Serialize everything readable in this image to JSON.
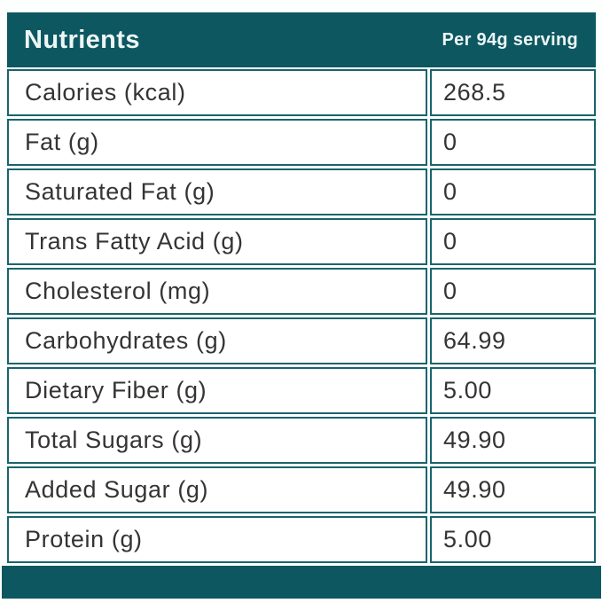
{
  "header": {
    "title": "Nutrients",
    "serving": "Per 94g serving"
  },
  "rows": [
    {
      "label": "Calories (kcal)",
      "value": "268.5"
    },
    {
      "label": "Fat (g)",
      "value": "0"
    },
    {
      "label": "Saturated Fat (g)",
      "value": "0"
    },
    {
      "label": "Trans Fatty Acid (g)",
      "value": "0"
    },
    {
      "label": "Cholesterol (mg)",
      "value": "0"
    },
    {
      "label": "Carbohydrates (g)",
      "value": "64.99"
    },
    {
      "label": "Dietary Fiber (g)",
      "value": "5.00"
    },
    {
      "label": "Total Sugars (g)",
      "value": "49.90"
    },
    {
      "label": "Added Sugar (g)",
      "value": "49.90"
    },
    {
      "label": "Protein (g)",
      "value": "5.00"
    }
  ],
  "colors": {
    "teal": "#0d5761",
    "border": "#19646d",
    "header_text": "#edf6f5",
    "body_text": "#343434",
    "page_bg": "#fdfffe",
    "cell_bg": "#ffffff"
  }
}
